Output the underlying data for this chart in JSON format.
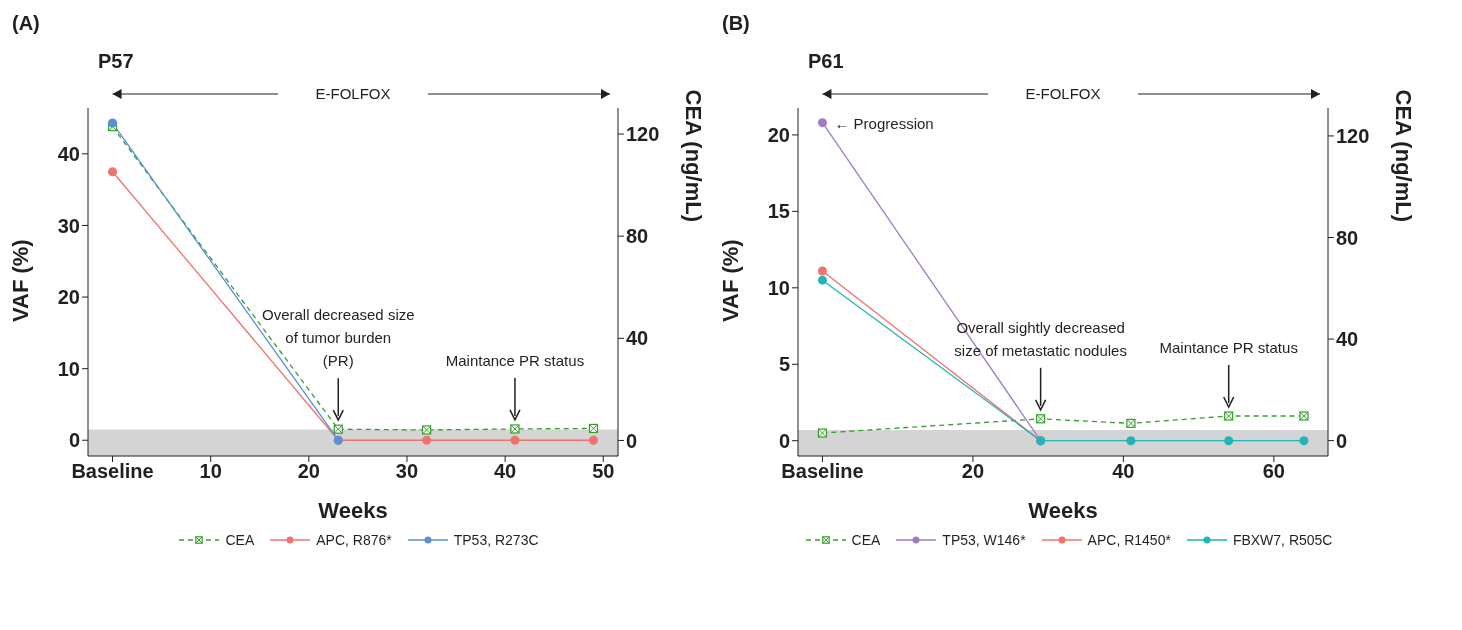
{
  "chart_data": [
    {
      "type": "line",
      "title": "(A)",
      "subtitle": "P57",
      "xlabel": "Weeks",
      "ylabel": "VAF (%)",
      "y2label": "CEA (ng/mL)",
      "x": [
        0,
        23,
        32,
        41,
        49
      ],
      "xlim": [
        -2.5,
        51.5
      ],
      "xticks": [
        {
          "value": 0,
          "label": "Baseline"
        },
        10,
        20,
        30,
        40,
        50
      ],
      "ylim": [
        -2.2,
        46.4
      ],
      "yticks": [
        0,
        10,
        20,
        30,
        40
      ],
      "y2lim": [
        -6.1,
        130.2
      ],
      "y2ticks": [
        0,
        40,
        80,
        120
      ],
      "marker": "circle",
      "legend": "bottom",
      "series": [
        {
          "name": "CEA",
          "color": "#33a02c",
          "axis": "y2",
          "marker": "square",
          "line_style": "dashed",
          "values": [
            122.9,
            4.4,
            4.1,
            4.5,
            4.7
          ]
        },
        {
          "name": "APC, R876*",
          "color": "#f0746e",
          "values": [
            37.5,
            0,
            0,
            0,
            0
          ]
        },
        {
          "name": "TP53, R273C",
          "color": "#5b8fd6",
          "values": [
            44.3,
            0,
            null,
            null,
            null
          ]
        }
      ],
      "bands": [
        {
          "axis": "y",
          "from": -2.2,
          "to": 1.5,
          "color": "#d4d4d4"
        }
      ],
      "annotations": [
        "E-FOLFOX",
        "Overall decreased size\nof tumor burden\n(PR)",
        "Maintance PR status"
      ]
    },
    {
      "type": "line",
      "title": "(B)",
      "subtitle": "P61",
      "xlabel": "Weeks",
      "ylabel": "VAF (%)",
      "y2label": "CEA (ng/mL)",
      "x": [
        0,
        29,
        41,
        54,
        64
      ],
      "xlim": [
        -3.25,
        67.2
      ],
      "xticks": [
        {
          "value": 0,
          "label": "Baseline"
        },
        20,
        40,
        60
      ],
      "ylim": [
        -1.0,
        21.76
      ],
      "yticks": [
        0,
        5,
        10,
        15,
        20
      ],
      "y2lim": [
        -6.05,
        131.0
      ],
      "y2ticks": [
        0,
        40,
        80,
        120
      ],
      "marker": "circle",
      "legend": "bottom",
      "series": [
        {
          "name": "CEA",
          "color": "#33a02c",
          "axis": "y2",
          "marker": "square",
          "line_style": "dashed",
          "values": [
            3.0,
            8.6,
            6.8,
            9.7,
            9.7
          ]
        },
        {
          "name": "TP53, W146*",
          "color": "#a07cc5",
          "values": [
            20.8,
            0,
            null,
            null,
            null
          ]
        },
        {
          "name": "APC, R1450*",
          "color": "#f0746e",
          "values": [
            11.1,
            0,
            null,
            null,
            null
          ]
        },
        {
          "name": "FBXW7, R505C",
          "color": "#22b5b5",
          "values": [
            10.5,
            0,
            0,
            0,
            0
          ]
        }
      ],
      "bands": [
        {
          "axis": "y",
          "from": -1.0,
          "to": 0.7,
          "color": "#d4d4d4"
        }
      ],
      "annotations": [
        "E-FOLFOX",
        {
          "text": "← Progression",
          "x": 0,
          "y": 20.8
        },
        "Overall sightly decreased\nsize of metastatic nodules",
        "Maintance PR status"
      ]
    }
  ]
}
